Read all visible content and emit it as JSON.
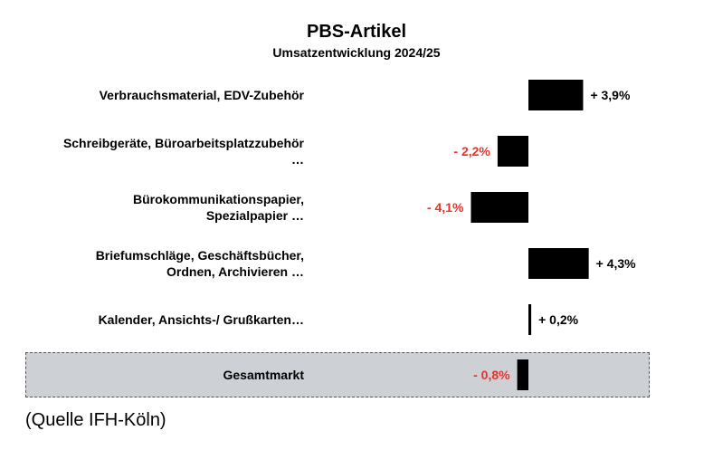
{
  "chart_data": {
    "type": "bar",
    "orientation": "horizontal",
    "title": "PBS-Artikel",
    "subtitle": "Umsatzentwicklung 2024/25",
    "categories": [
      [
        "Verbrauchsmaterial, EDV-Zubehör"
      ],
      [
        "Schreibgeräte, Büroarbeitsplatzzubehör",
        "…"
      ],
      [
        "Bürokommunikationspapier,",
        "Spezialpapier …"
      ],
      [
        "Briefumschläge, Geschäftsbücher,",
        "Ordnen, Archivieren …"
      ],
      [
        "Kalender, Ansichts-/ Grußkarten…"
      ],
      [
        "Gesamtmarkt"
      ]
    ],
    "values": [
      3.9,
      -2.2,
      -4.1,
      4.3,
      0.2,
      -0.8
    ],
    "value_labels": [
      "+ 3,9%",
      "- 2,2%",
      "- 4,1%",
      "+ 4,3%",
      "+ 0,2%",
      "- 0,8%"
    ],
    "highlighted_category": "Gesamtmarkt",
    "bar_color": "#000000",
    "positive_label_color": "#000000",
    "negative_label_color": "#e8322b",
    "total_band_color": "#cdd1d6",
    "legend": "none",
    "grid": false
  },
  "source_note": "(Quelle IFH-Köln)"
}
